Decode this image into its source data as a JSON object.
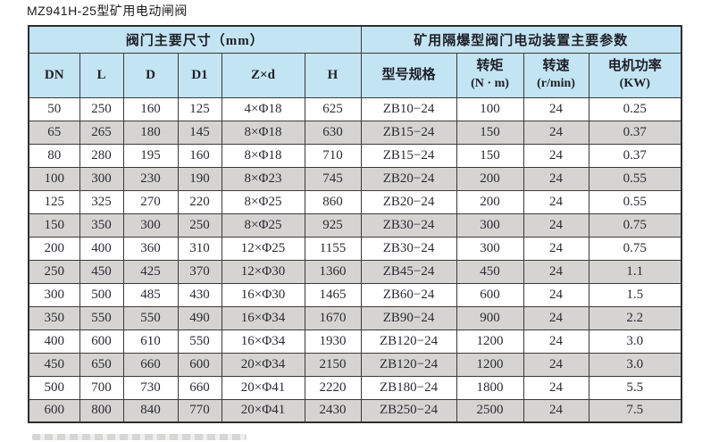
{
  "page": {
    "title": "MZ941H-25型矿用电动闸阀"
  },
  "table": {
    "group_headers": [
      {
        "label": "阀门主要尺寸（mm）",
        "colspan": 6
      },
      {
        "label": "矿用隔爆型阀门电动装置主要参数",
        "colspan": 4
      }
    ],
    "columns": [
      {
        "label": "DN",
        "sub": ""
      },
      {
        "label": "L",
        "sub": ""
      },
      {
        "label": "D",
        "sub": ""
      },
      {
        "label": "D1",
        "sub": ""
      },
      {
        "label": "Z×d",
        "sub": ""
      },
      {
        "label": "H",
        "sub": ""
      },
      {
        "label": "型号规格",
        "sub": ""
      },
      {
        "label": "转矩",
        "sub": "(N · m)"
      },
      {
        "label": "转速",
        "sub": "(r/min)"
      },
      {
        "label": "电机功率",
        "sub": "(KW)"
      }
    ],
    "rows": [
      [
        "50",
        "250",
        "160",
        "125",
        "4×Φ18",
        "625",
        "ZB10−24",
        "100",
        "24",
        "0.25"
      ],
      [
        "65",
        "265",
        "180",
        "145",
        "8×Φ18",
        "630",
        "ZB15−24",
        "150",
        "24",
        "0.37"
      ],
      [
        "80",
        "280",
        "195",
        "160",
        "8×Φ18",
        "710",
        "ZB15−24",
        "150",
        "24",
        "0.37"
      ],
      [
        "100",
        "300",
        "230",
        "190",
        "8×Φ23",
        "745",
        "ZB20−24",
        "200",
        "24",
        "0.55"
      ],
      [
        "125",
        "325",
        "270",
        "220",
        "8×Φ25",
        "860",
        "ZB20−24",
        "200",
        "24",
        "0.55"
      ],
      [
        "150",
        "350",
        "300",
        "250",
        "8×Φ25",
        "925",
        "ZB30−24",
        "300",
        "24",
        "0.75"
      ],
      [
        "200",
        "400",
        "360",
        "310",
        "12×Φ25",
        "1155",
        "ZB30−24",
        "300",
        "24",
        "0.75"
      ],
      [
        "250",
        "450",
        "425",
        "370",
        "12×Φ30",
        "1360",
        "ZB45−24",
        "450",
        "24",
        "1.1"
      ],
      [
        "300",
        "500",
        "485",
        "430",
        "16×Φ30",
        "1465",
        "ZB60−24",
        "600",
        "24",
        "1.5"
      ],
      [
        "350",
        "550",
        "550",
        "490",
        "16×Φ34",
        "1670",
        "ZB90−24",
        "900",
        "24",
        "2.2"
      ],
      [
        "400",
        "600",
        "610",
        "550",
        "16×Φ34",
        "1930",
        "ZB120−24",
        "1200",
        "24",
        "3.0"
      ],
      [
        "450",
        "650",
        "660",
        "600",
        "20×Φ34",
        "2150",
        "ZB120−24",
        "1200",
        "24",
        "3.0"
      ],
      [
        "500",
        "700",
        "730",
        "660",
        "20×Φ41",
        "2220",
        "ZB180−24",
        "1800",
        "24",
        "5.5"
      ],
      [
        "600",
        "800",
        "840",
        "770",
        "20×Φ41",
        "2430",
        "ZB250−24",
        "2500",
        "24",
        "7.5"
      ]
    ],
    "colors": {
      "header_bg": "#c3e4f2",
      "row_alt_bg": "#d5d4d2",
      "border": "#3a3a3a",
      "text": "#2b2b33"
    }
  }
}
